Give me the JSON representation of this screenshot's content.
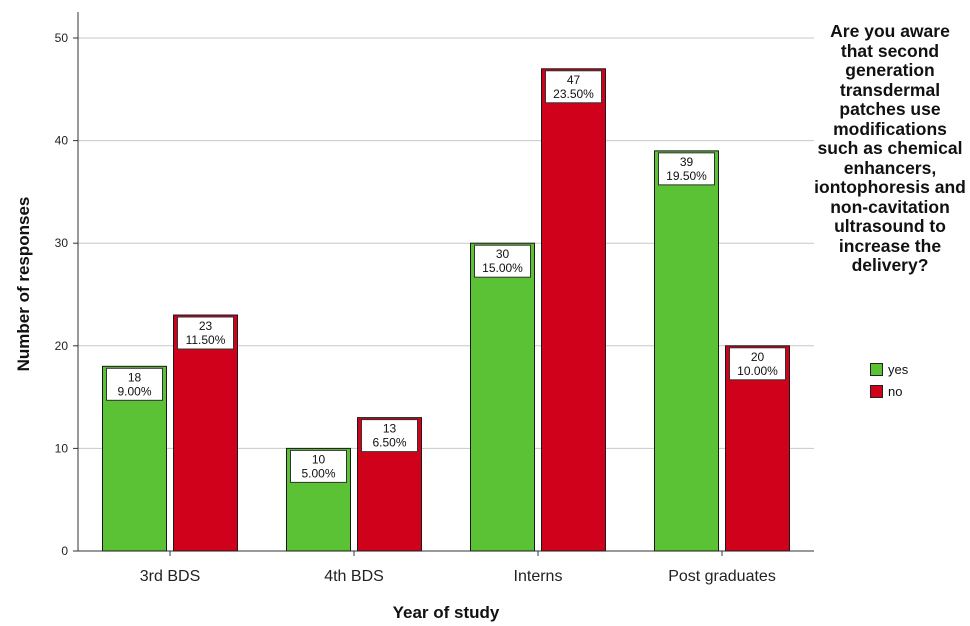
{
  "chart_data": {
    "type": "bar",
    "xlabel": "Year of study",
    "ylabel": "Number of responses",
    "ylim": [
      0,
      50
    ],
    "yticks": [
      0,
      10,
      20,
      30,
      40,
      50
    ],
    "grid": true,
    "legend_position": "right",
    "legend_title": "Are you aware that second generation transdermal patches use modifications such as chemical enhancers, iontophoresis and non-cavitation ultrasound to increase the delivery?",
    "categories": [
      "3rd BDS",
      "4th BDS",
      "Interns",
      "Post graduates"
    ],
    "series": [
      {
        "name": "yes",
        "color": "#5bc236",
        "values": [
          18,
          10,
          30,
          39
        ],
        "percent_labels": [
          "9.00%",
          "5.00%",
          "15.00%",
          "19.50%"
        ]
      },
      {
        "name": "no",
        "color": "#d0021b",
        "values": [
          23,
          13,
          47,
          20
        ],
        "percent_labels": [
          "11.50%",
          "6.50%",
          "23.50%",
          "10.00%"
        ]
      }
    ]
  }
}
